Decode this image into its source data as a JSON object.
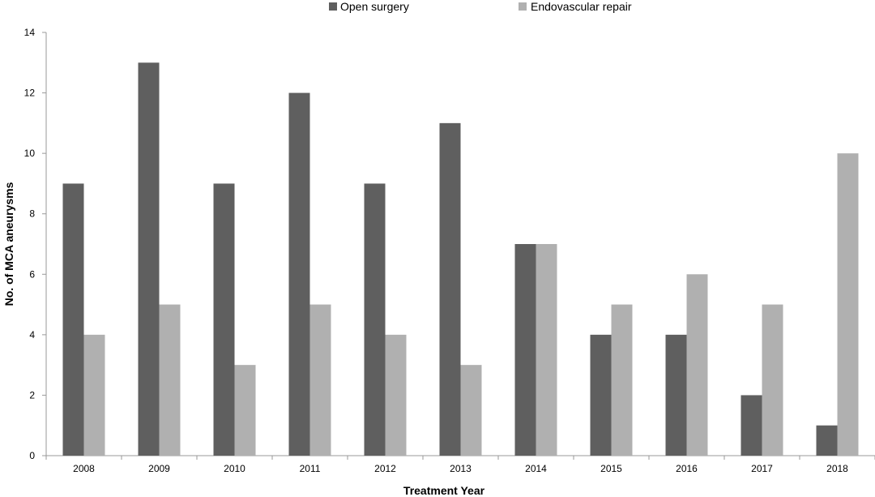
{
  "chart_data": {
    "type": "bar",
    "categories": [
      "2008",
      "2009",
      "2010",
      "2011",
      "2012",
      "2013",
      "2014",
      "2015",
      "2016",
      "2017",
      "2018"
    ],
    "series": [
      {
        "name": "Open surgery",
        "color": "#5f5f5f",
        "values": [
          9,
          13,
          9,
          12,
          9,
          11,
          7,
          4,
          4,
          2,
          1
        ]
      },
      {
        "name": "Endovascular repair",
        "color": "#b0b0b0",
        "values": [
          4,
          5,
          3,
          5,
          4,
          3,
          7,
          5,
          6,
          5,
          10
        ]
      }
    ],
    "xlabel": "Treatment Year",
    "ylabel": "No. of MCA aneurysms",
    "ylim": [
      0,
      14
    ],
    "yticks": [
      0,
      2,
      4,
      6,
      8,
      10,
      12,
      14
    ],
    "grid": false,
    "legend_position": "top-center"
  }
}
